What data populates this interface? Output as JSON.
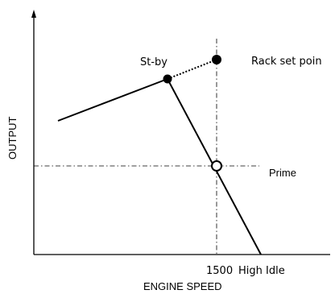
{
  "labels": {
    "y_axis": "OUTPUT",
    "x_axis": "ENGINE SPEED",
    "standby": "St-by",
    "rack_set_point": "Rack set poin",
    "prime": "Prime",
    "speed_value": "1500",
    "high_idle": "High Idle"
  },
  "colors": {
    "line": "#000000",
    "background": "#ffffff"
  }
}
